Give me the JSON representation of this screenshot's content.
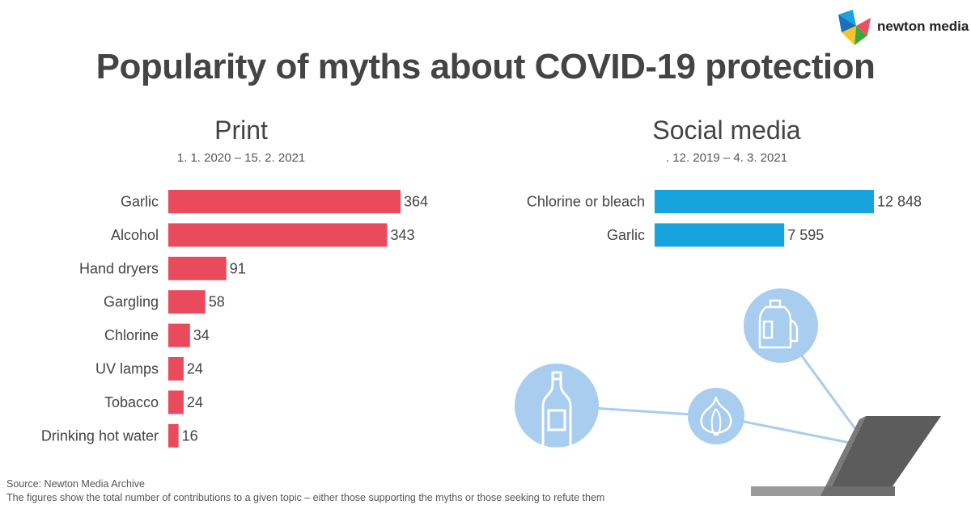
{
  "title": "Popularity of myths about COVID-19 protection",
  "brand": {
    "name": "newton media"
  },
  "footer": {
    "source": "Source: Newton Media Archive",
    "note": "The figures show the total number of contributions to a given topic –  either those supporting the myths or those seeking to refute them"
  },
  "colors": {
    "print_bar": "#e94b5d",
    "social_bar": "#17a3de",
    "illustration": "#a9cdee",
    "laptop": "#5c5c5c"
  },
  "icons": [
    "bottle-icon",
    "garlic-icon",
    "bleach-container-icon",
    "laptop-icon"
  ],
  "chart_data": [
    {
      "type": "bar",
      "orientation": "horizontal",
      "title": "Print",
      "subtitle": "1. 1. 2020 – 15. 2. 2021",
      "categories": [
        "Garlic",
        "Alcohol",
        "Hand dryers",
        "Gargling",
        "Chlorine",
        "UV lamps",
        "Tobacco",
        "Drinking hot water"
      ],
      "values": [
        364,
        343,
        91,
        58,
        34,
        24,
        24,
        16
      ],
      "labels": [
        "364",
        "343",
        "91",
        "58",
        "34",
        "24",
        "24",
        "16"
      ],
      "xlim": [
        0,
        364
      ],
      "grid": false
    },
    {
      "type": "bar",
      "orientation": "horizontal",
      "title": "Social media",
      "subtitle": ". 12. 2019 – 4. 3. 2021",
      "categories": [
        "Chlorine or bleach",
        "Garlic"
      ],
      "values": [
        12848,
        7595
      ],
      "labels": [
        "12 848",
        "7 595"
      ],
      "xlim": [
        0,
        12848
      ],
      "grid": false
    }
  ]
}
